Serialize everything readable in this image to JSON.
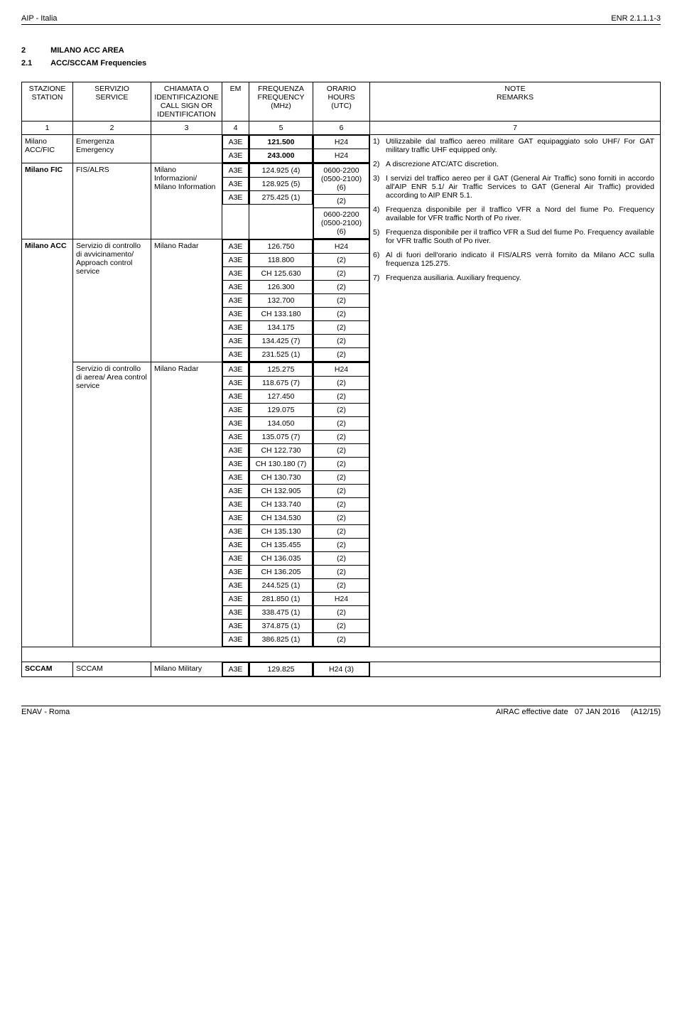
{
  "header": {
    "left": "AIP - Italia",
    "right": "ENR 2.1.1.1-3"
  },
  "sections": [
    {
      "num": "2",
      "title": "MILANO ACC AREA"
    },
    {
      "num": "2.1",
      "title": "ACC/SCCAM Frequencies"
    }
  ],
  "columns": {
    "h1a": "STAZIONE",
    "h1b": "STATION",
    "h2a": "SERVIZIO",
    "h2b": "SERVICE",
    "h3a": "CHIAMATA O IDENTIFICAZIONE",
    "h3b": "CALL SIGN OR IDENTIFICATION",
    "h4": "EM",
    "h5a": "FREQUENZA",
    "h5b": "FREQUENCY",
    "h5c": "(MHz)",
    "h6a": "ORARIO",
    "h6b": "HOURS",
    "h6c": "(UTC)",
    "h7a": "NOTE",
    "h7b": "REMARKS",
    "n1": "1",
    "n2": "2",
    "n3": "3",
    "n4": "4",
    "n5": "5",
    "n6": "6",
    "n7": "7"
  },
  "rows": {
    "r1": {
      "station": "Milano ACC/FIC",
      "service": "Emergenza Emergency",
      "call": "",
      "lines": [
        {
          "em": "A3E",
          "freq": "121.500",
          "hours": "H24",
          "bold": true
        },
        {
          "em": "A3E",
          "freq": "243.000",
          "hours": "H24",
          "bold": true
        }
      ]
    },
    "r2": {
      "station": "Milano FIC",
      "service": "FIS/ALRS",
      "call": "Milano Informazioni/ Milano Information",
      "lines": [
        {
          "em": "A3E",
          "freq": "124.925 (4)",
          "hours": "0600-2200 (0500-2100) (6)"
        },
        {
          "em": "A3E",
          "freq": "128.925 (5)",
          "hours": "(2)"
        },
        {
          "em": "A3E",
          "freq": "275.425 (1)",
          "hours": "0600-2200 (0500-2100) (6)"
        }
      ]
    },
    "r3": {
      "station": "Milano ACC",
      "service": "Servizio di controllo di avvicinamento/ Approach control service",
      "call": "Milano Radar",
      "lines": [
        {
          "em": "A3E",
          "freq": "126.750",
          "hours": "H24"
        },
        {
          "em": "A3E",
          "freq": "118.800",
          "hours": "(2)"
        },
        {
          "em": "A3E",
          "freq": "CH 125.630",
          "hours": "(2)"
        },
        {
          "em": "A3E",
          "freq": "126.300",
          "hours": "(2)"
        },
        {
          "em": "A3E",
          "freq": "132.700",
          "hours": "(2)"
        },
        {
          "em": "A3E",
          "freq": "CH 133.180",
          "hours": "(2)"
        },
        {
          "em": "A3E",
          "freq": "134.175",
          "hours": "(2)"
        },
        {
          "em": "A3E",
          "freq": "134.425 (7)",
          "hours": "(2)"
        },
        {
          "em": "A3E",
          "freq": "231.525 (1)",
          "hours": "(2)"
        }
      ]
    },
    "r4": {
      "station": "",
      "service": "Servizio di controllo di aerea/ Area control service",
      "call": "Milano Radar",
      "lines": [
        {
          "em": "A3E",
          "freq": "125.275",
          "hours": "H24"
        },
        {
          "em": "A3E",
          "freq": "118.675 (7)",
          "hours": "(2)"
        },
        {
          "em": "A3E",
          "freq": "127.450",
          "hours": "(2)"
        },
        {
          "em": "A3E",
          "freq": "129.075",
          "hours": "(2)"
        },
        {
          "em": "A3E",
          "freq": "134.050",
          "hours": "(2)"
        },
        {
          "em": "A3E",
          "freq": "135.075 (7)",
          "hours": "(2)"
        },
        {
          "em": "A3E",
          "freq": "CH 122.730",
          "hours": "(2)"
        },
        {
          "em": "A3E",
          "freq": "CH 130.180 (7)",
          "hours": "(2)"
        },
        {
          "em": "A3E",
          "freq": "CH 130.730",
          "hours": "(2)"
        },
        {
          "em": "A3E",
          "freq": "CH 132.905",
          "hours": "(2)"
        },
        {
          "em": "A3E",
          "freq": "CH 133.740",
          "hours": "(2)"
        },
        {
          "em": "A3E",
          "freq": "CH 134.530",
          "hours": "(2)"
        },
        {
          "em": "A3E",
          "freq": "CH 135.130",
          "hours": "(2)"
        },
        {
          "em": "A3E",
          "freq": "CH 135.455",
          "hours": "(2)"
        },
        {
          "em": "A3E",
          "freq": "CH 136.035",
          "hours": "(2)"
        },
        {
          "em": "A3E",
          "freq": "CH 136.205",
          "hours": "(2)"
        },
        {
          "em": "A3E",
          "freq": "244.525 (1)",
          "hours": "(2)"
        },
        {
          "em": "A3E",
          "freq": "281.850 (1)",
          "hours": "H24"
        },
        {
          "em": "A3E",
          "freq": "338.475 (1)",
          "hours": "(2)"
        },
        {
          "em": "A3E",
          "freq": "374.875 (1)",
          "hours": "(2)"
        },
        {
          "em": "A3E",
          "freq": "386.825 (1)",
          "hours": "(2)"
        }
      ]
    },
    "r5": {
      "station": "SCCAM",
      "service": "SCCAM",
      "call": "Milano Military",
      "lines": [
        {
          "em": "A3E",
          "freq": "129.825",
          "hours": "H24 (3)"
        }
      ]
    }
  },
  "notes": [
    {
      "n": "1)",
      "t": "Utilizzabile dal traffico aereo militare GAT equipaggiato solo UHF/ For GAT military traffic UHF equipped only."
    },
    {
      "n": "2)",
      "t": "A discrezione ATC/ATC discretion."
    },
    {
      "n": "3)",
      "t": "I servizi del traffico aereo per il GAT (General Air Traffic) sono forniti in accordo all'AIP ENR 5.1/ Air Traffic Services to GAT (General Air Traffic) provided according to AIP ENR 5.1."
    },
    {
      "n": "4)",
      "t": "Frequenza disponibile per il traffico VFR a Nord del fiume Po. Frequency available for VFR traffic North of Po river."
    },
    {
      "n": "5)",
      "t": "Frequenza disponibile per il traffico VFR a Sud del fiume Po. Frequency available for VFR traffic South of Po river."
    },
    {
      "n": "6)",
      "t": "Al di fuori dell'orario indicato il FIS/ALRS verrà fornito da Milano ACC sulla frequenza 125.275."
    },
    {
      "n": "7)",
      "t": "Frequenza ausiliaria. Auxiliary frequency."
    }
  ],
  "footer": {
    "left": "ENAV - Roma",
    "mid": "AIRAC effective date",
    "date": "07 JAN 2016",
    "rev": "(A12/15)"
  }
}
